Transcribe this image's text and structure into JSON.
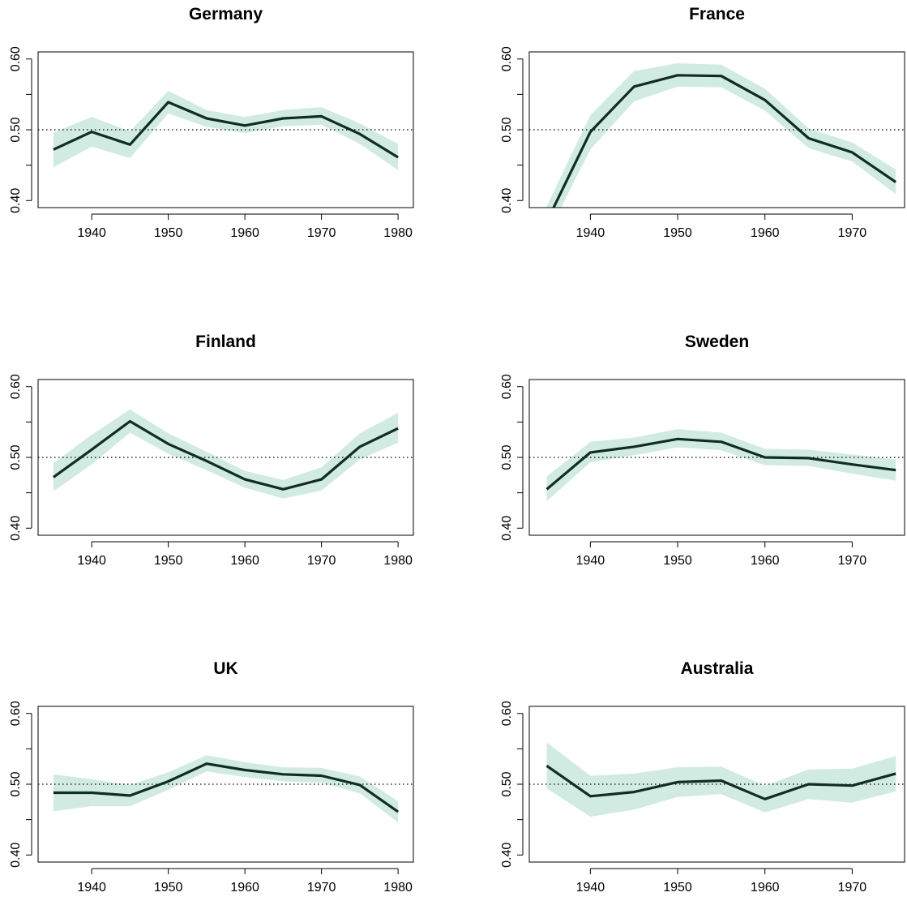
{
  "colors": {
    "band": "#d2ebe2",
    "line": "#0f2e1f",
    "axis": "#000000",
    "reference": "#000000",
    "background": "#ffffff"
  },
  "chart_data": [
    {
      "type": "line",
      "title": "Germany",
      "xlabel": "",
      "ylabel": "",
      "xlim": [
        1933,
        1982
      ],
      "ylim": [
        0.39,
        0.61
      ],
      "xticks": [
        1940,
        1950,
        1960,
        1970,
        1980
      ],
      "xtick_labels": [
        "1940",
        "1950",
        "1960",
        "1970",
        "1980"
      ],
      "yticks": [
        0.4,
        0.45,
        0.5,
        0.55,
        0.6
      ],
      "ytick_labels": [
        "0.40",
        "",
        "0.50",
        "",
        "0.60"
      ],
      "reference_line": 0.5,
      "x": [
        1935,
        1940,
        1945,
        1950,
        1955,
        1960,
        1965,
        1970,
        1975,
        1980
      ],
      "series": [
        {
          "values": [
            0.472,
            0.497,
            0.479,
            0.539,
            0.516,
            0.506,
            0.516,
            0.519,
            0.494,
            0.461
          ],
          "lower": [
            0.447,
            0.476,
            0.46,
            0.523,
            0.504,
            0.495,
            0.505,
            0.507,
            0.48,
            0.443
          ],
          "upper": [
            0.496,
            0.518,
            0.498,
            0.555,
            0.528,
            0.518,
            0.528,
            0.532,
            0.509,
            0.48
          ]
        }
      ]
    },
    {
      "type": "line",
      "title": "France",
      "xlabel": "",
      "ylabel": "",
      "xlim": [
        1933,
        1976
      ],
      "ylim": [
        0.39,
        0.61
      ],
      "xticks": [
        1940,
        1950,
        1960,
        1970
      ],
      "xtick_labels": [
        "1940",
        "1950",
        "1960",
        "1970"
      ],
      "yticks": [
        0.4,
        0.45,
        0.5,
        0.55,
        0.6
      ],
      "ytick_labels": [
        "0.40",
        "",
        "0.50",
        "",
        "0.60"
      ],
      "reference_line": 0.5,
      "x": [
        1935,
        1940,
        1945,
        1950,
        1955,
        1960,
        1965,
        1970,
        1975
      ],
      "series": [
        {
          "values": [
            0.37,
            0.497,
            0.561,
            0.577,
            0.576,
            0.542,
            0.488,
            0.468,
            0.426
          ],
          "lower": [
            0.35,
            0.472,
            0.54,
            0.561,
            0.56,
            0.527,
            0.474,
            0.455,
            0.409
          ],
          "upper": [
            0.392,
            0.521,
            0.583,
            0.594,
            0.592,
            0.558,
            0.502,
            0.482,
            0.444
          ]
        }
      ]
    },
    {
      "type": "line",
      "title": "Finland",
      "xlabel": "",
      "ylabel": "",
      "xlim": [
        1933,
        1982
      ],
      "ylim": [
        0.39,
        0.61
      ],
      "xticks": [
        1940,
        1950,
        1960,
        1970,
        1980
      ],
      "xtick_labels": [
        "1940",
        "1950",
        "1960",
        "1970",
        "1980"
      ],
      "yticks": [
        0.4,
        0.45,
        0.5,
        0.55,
        0.6
      ],
      "ytick_labels": [
        "0.40",
        "",
        "0.50",
        "",
        "0.60"
      ],
      "reference_line": 0.5,
      "x": [
        1935,
        1940,
        1945,
        1950,
        1955,
        1960,
        1965,
        1970,
        1975,
        1980
      ],
      "series": [
        {
          "values": [
            0.472,
            0.511,
            0.551,
            0.519,
            0.495,
            0.469,
            0.455,
            0.469,
            0.515,
            0.541
          ],
          "lower": [
            0.452,
            0.49,
            0.535,
            0.505,
            0.482,
            0.457,
            0.442,
            0.453,
            0.497,
            0.521
          ],
          "upper": [
            0.492,
            0.532,
            0.568,
            0.534,
            0.508,
            0.481,
            0.468,
            0.486,
            0.534,
            0.563
          ]
        }
      ]
    },
    {
      "type": "line",
      "title": "Sweden",
      "xlabel": "",
      "ylabel": "",
      "xlim": [
        1933,
        1976
      ],
      "ylim": [
        0.39,
        0.61
      ],
      "xticks": [
        1940,
        1950,
        1960,
        1970
      ],
      "xtick_labels": [
        "1940",
        "1950",
        "1960",
        "1970"
      ],
      "yticks": [
        0.4,
        0.45,
        0.5,
        0.55,
        0.6
      ],
      "ytick_labels": [
        "0.40",
        "",
        "0.50",
        "",
        "0.60"
      ],
      "reference_line": 0.5,
      "x": [
        1935,
        1940,
        1945,
        1950,
        1955,
        1960,
        1965,
        1970,
        1975
      ],
      "series": [
        {
          "values": [
            0.455,
            0.507,
            0.515,
            0.526,
            0.522,
            0.5,
            0.499,
            0.49,
            0.482
          ],
          "lower": [
            0.438,
            0.493,
            0.503,
            0.514,
            0.51,
            0.489,
            0.488,
            0.477,
            0.467
          ],
          "upper": [
            0.473,
            0.522,
            0.528,
            0.54,
            0.535,
            0.512,
            0.511,
            0.504,
            0.497
          ]
        }
      ]
    },
    {
      "type": "line",
      "title": "UK",
      "xlabel": "",
      "ylabel": "",
      "xlim": [
        1933,
        1982
      ],
      "ylim": [
        0.39,
        0.61
      ],
      "xticks": [
        1940,
        1950,
        1960,
        1970,
        1980
      ],
      "xtick_labels": [
        "1940",
        "1950",
        "1960",
        "1970",
        "1980"
      ],
      "yticks": [
        0.4,
        0.45,
        0.5,
        0.55,
        0.6
      ],
      "ytick_labels": [
        "0.40",
        "",
        "0.50",
        "",
        "0.60"
      ],
      "reference_line": 0.5,
      "x": [
        1935,
        1940,
        1945,
        1950,
        1955,
        1960,
        1965,
        1970,
        1975,
        1980
      ],
      "series": [
        {
          "values": [
            0.488,
            0.488,
            0.484,
            0.504,
            0.529,
            0.52,
            0.514,
            0.512,
            0.499,
            0.461
          ],
          "lower": [
            0.462,
            0.469,
            0.469,
            0.492,
            0.518,
            0.51,
            0.504,
            0.502,
            0.487,
            0.446
          ],
          "upper": [
            0.514,
            0.507,
            0.499,
            0.517,
            0.541,
            0.531,
            0.524,
            0.523,
            0.511,
            0.476
          ]
        }
      ]
    },
    {
      "type": "line",
      "title": "Australia",
      "xlabel": "",
      "ylabel": "",
      "xlim": [
        1933,
        1976
      ],
      "ylim": [
        0.39,
        0.61
      ],
      "xticks": [
        1940,
        1950,
        1960,
        1970
      ],
      "xtick_labels": [
        "1940",
        "1950",
        "1960",
        "1970"
      ],
      "yticks": [
        0.4,
        0.45,
        0.5,
        0.55,
        0.6
      ],
      "ytick_labels": [
        "0.40",
        "",
        "0.50",
        "",
        "0.60"
      ],
      "reference_line": 0.5,
      "x": [
        1935,
        1940,
        1945,
        1950,
        1955,
        1960,
        1965,
        1970,
        1975
      ],
      "series": [
        {
          "values": [
            0.526,
            0.483,
            0.489,
            0.503,
            0.505,
            0.479,
            0.5,
            0.498,
            0.515
          ],
          "lower": [
            0.494,
            0.454,
            0.464,
            0.482,
            0.486,
            0.46,
            0.479,
            0.474,
            0.49
          ],
          "upper": [
            0.559,
            0.512,
            0.515,
            0.524,
            0.525,
            0.498,
            0.521,
            0.522,
            0.54
          ]
        }
      ]
    }
  ]
}
